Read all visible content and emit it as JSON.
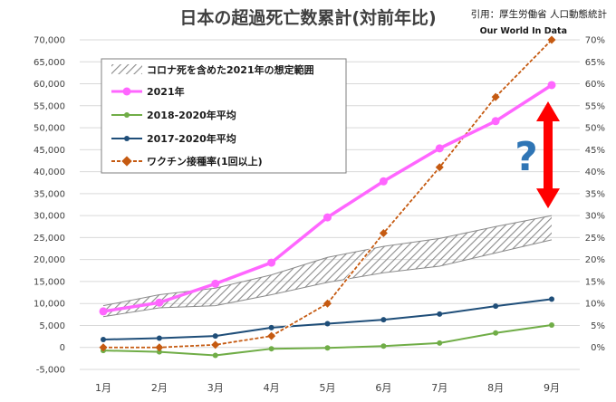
{
  "chart_data": {
    "type": "line",
    "title": "日本の超過死亡数累計(対前年比)",
    "source": "引用：厚生労働省 人口動態統計",
    "credit": "Our World In Data",
    "categories": [
      "1月",
      "2月",
      "3月",
      "4月",
      "5月",
      "6月",
      "7月",
      "8月",
      "9月"
    ],
    "y_left": {
      "range": [
        -5000,
        70000
      ],
      "ticks": [
        "-5,000",
        "0",
        "5,000",
        "10,000",
        "15,000",
        "20,000",
        "25,000",
        "30,000",
        "35,000",
        "40,000",
        "45,000",
        "50,000",
        "55,000",
        "60,000",
        "65,000",
        "70,000"
      ]
    },
    "y_right": {
      "range": [
        0,
        70
      ],
      "ticks": [
        "0%",
        "5%",
        "10%",
        "15%",
        "20%",
        "25%",
        "30%",
        "35%",
        "40%",
        "45%",
        "50%",
        "55%",
        "60%",
        "65%",
        "70%"
      ]
    },
    "band": {
      "name": "コロナ死を含めた2021年の想定範囲",
      "upper": [
        9500,
        12000,
        13500,
        16500,
        20500,
        23000,
        24800,
        27500,
        30000
      ],
      "lower": [
        7000,
        9000,
        9500,
        12000,
        14800,
        17000,
        18500,
        21500,
        24500
      ]
    },
    "series": [
      {
        "name": "2021年",
        "axis": "left",
        "color": "#ff66ff",
        "values": [
          8200,
          10200,
          14500,
          19300,
          29600,
          37800,
          45300,
          51500,
          59700
        ]
      },
      {
        "name": "2018-2020年平均",
        "axis": "left",
        "color": "#70ad47",
        "values": [
          -700,
          -1000,
          -1800,
          -300,
          -100,
          300,
          1000,
          3300,
          5100
        ]
      },
      {
        "name": "2017-2020年平均",
        "axis": "left",
        "color": "#1f4e79",
        "values": [
          1800,
          2100,
          2600,
          4500,
          5400,
          6300,
          7600,
          9400,
          11000
        ]
      },
      {
        "name": "ワクチン接種率(1回以上)",
        "axis": "right",
        "color": "#c55a11",
        "values": [
          0,
          0,
          0.6,
          2.6,
          10,
          26,
          41,
          57,
          70
        ]
      }
    ],
    "annotation": {
      "text": "?",
      "arrow_color": "#ff0000"
    },
    "legend": "top-left (inside plot)"
  }
}
